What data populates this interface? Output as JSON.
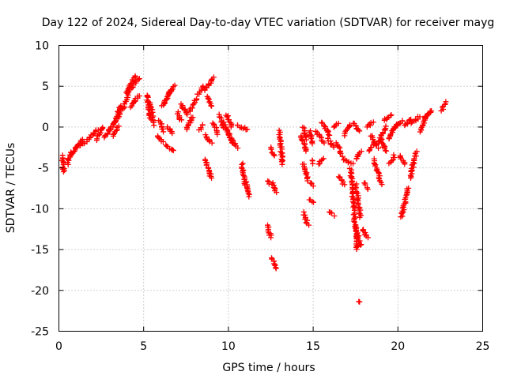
{
  "chart_data": {
    "type": "scatter",
    "title": "Day 122 of 2024, Sidereal Day-to-day VTEC variation (SDTVAR) for receiver mayg",
    "xlabel": "GPS time / hours",
    "ylabel": "SDTVAR / TECUs",
    "xlim": [
      0,
      25
    ],
    "ylim": [
      -25,
      10
    ],
    "x_ticks": [
      0,
      5,
      10,
      15,
      20,
      25
    ],
    "y_ticks": [
      -25,
      -20,
      -15,
      -10,
      -5,
      0,
      5,
      10
    ],
    "x_tick_labels": [
      "0",
      "5",
      "10",
      "15",
      "20",
      "25"
    ],
    "y_tick_labels": [
      "-25",
      "-20",
      "-15",
      "-10",
      "-5",
      "0",
      "5",
      "10"
    ],
    "grid": true,
    "marker": "plus",
    "color": "#ff0000",
    "segments": [
      {
        "x": [
          0.2,
          0.3
        ],
        "y": [
          -3.5,
          -5.5
        ]
      },
      {
        "x": [
          0.5,
          0.7
        ],
        "y": [
          -4.5,
          -3.0
        ]
      },
      {
        "x": [
          0.7,
          1.4
        ],
        "y": [
          -3.5,
          -1.5
        ]
      },
      {
        "x": [
          1.0,
          1.6
        ],
        "y": [
          -2.5,
          -1.8
        ]
      },
      {
        "x": [
          1.7,
          2.3
        ],
        "y": [
          -1.5,
          -0.3
        ]
      },
      {
        "x": [
          2.2,
          2.6
        ],
        "y": [
          -1.5,
          0.0
        ]
      },
      {
        "x": [
          2.7,
          3.0
        ],
        "y": [
          -1.3,
          -0.2
        ]
      },
      {
        "x": [
          3.0,
          3.4
        ],
        "y": [
          -0.5,
          1.0
        ]
      },
      {
        "x": [
          3.2,
          3.5
        ],
        "y": [
          -1.0,
          0.0
        ]
      },
      {
        "x": [
          3.3,
          3.6
        ],
        "y": [
          0.5,
          2.5
        ]
      },
      {
        "x": [
          3.5,
          3.7
        ],
        "y": [
          1.2,
          2.6
        ]
      },
      {
        "x": [
          3.8,
          4.2
        ],
        "y": [
          2.3,
          4.8
        ]
      },
      {
        "x": [
          4.0,
          4.5
        ],
        "y": [
          4.3,
          6.3
        ]
      },
      {
        "x": [
          4.3,
          4.7
        ],
        "y": [
          4.8,
          6.0
        ]
      },
      {
        "x": [
          4.2,
          4.7
        ],
        "y": [
          2.5,
          3.8
        ]
      },
      {
        "x": [
          5.2,
          5.4
        ],
        "y": [
          4.0,
          1.0
        ]
      },
      {
        "x": [
          5.4,
          5.6
        ],
        "y": [
          3.0,
          0.3
        ]
      },
      {
        "x": [
          5.8,
          6.1
        ],
        "y": [
          -1.0,
          -1.8
        ]
      },
      {
        "x": [
          5.9,
          6.2
        ],
        "y": [
          0.8,
          -0.5
        ]
      },
      {
        "x": [
          6.1,
          6.6
        ],
        "y": [
          2.5,
          4.5
        ]
      },
      {
        "x": [
          6.4,
          6.8
        ],
        "y": [
          3.8,
          5.0
        ]
      },
      {
        "x": [
          6.3,
          6.8
        ],
        "y": [
          -2.3,
          -2.8
        ]
      },
      {
        "x": [
          6.4,
          6.7
        ],
        "y": [
          0.0,
          -0.8
        ]
      },
      {
        "x": [
          7.0,
          7.2
        ],
        "y": [
          1.8,
          0.8
        ]
      },
      {
        "x": [
          7.2,
          7.6
        ],
        "y": [
          2.8,
          1.5
        ]
      },
      {
        "x": [
          7.5,
          7.9
        ],
        "y": [
          -0.3,
          1.3
        ]
      },
      {
        "x": [
          7.7,
          8.1
        ],
        "y": [
          2.0,
          3.5
        ]
      },
      {
        "x": [
          8.2,
          8.5
        ],
        "y": [
          4.0,
          5.0
        ]
      },
      {
        "x": [
          8.3,
          8.5
        ],
        "y": [
          -0.3,
          0.3
        ]
      },
      {
        "x": [
          8.6,
          9.1
        ],
        "y": [
          4.5,
          6.0
        ]
      },
      {
        "x": [
          8.6,
          9.0
        ],
        "y": [
          -1.0,
          -2.0
        ]
      },
      {
        "x": [
          8.6,
          9.0
        ],
        "y": [
          -4.0,
          -6.3
        ]
      },
      {
        "x": [
          8.8,
          9.0
        ],
        "y": [
          3.8,
          2.5
        ]
      },
      {
        "x": [
          9.1,
          9.4
        ],
        "y": [
          0.5,
          -0.8
        ]
      },
      {
        "x": [
          9.5,
          9.7
        ],
        "y": [
          1.5,
          0.0
        ]
      },
      {
        "x": [
          9.7,
          10.3
        ],
        "y": [
          0.5,
          -2.0
        ]
      },
      {
        "x": [
          9.9,
          10.2
        ],
        "y": [
          1.5,
          0.0
        ]
      },
      {
        "x": [
          10.0,
          10.5
        ],
        "y": [
          -1.0,
          -2.5
        ]
      },
      {
        "x": [
          10.5,
          11.1
        ],
        "y": [
          0.2,
          -0.3
        ]
      },
      {
        "x": [
          10.8,
          11.0
        ],
        "y": [
          -4.5,
          -7.0
        ]
      },
      {
        "x": [
          11.0,
          11.2
        ],
        "y": [
          -6.5,
          -8.5
        ]
      },
      {
        "x": [
          12.3,
          12.4
        ],
        "y": [
          -6.5,
          -7.0
        ]
      },
      {
        "x": [
          12.3,
          12.5
        ],
        "y": [
          -12.0,
          -13.5
        ]
      },
      {
        "x": [
          12.5,
          12.7
        ],
        "y": [
          -2.5,
          -3.5
        ]
      },
      {
        "x": [
          12.6,
          12.8
        ],
        "y": [
          -6.8,
          -8.0
        ]
      },
      {
        "x": [
          12.6,
          12.8
        ],
        "y": [
          -16.0,
          -17.3
        ]
      },
      {
        "x": [
          13.0,
          13.2
        ],
        "y": [
          -0.5,
          -4.5
        ]
      },
      {
        "x": [
          14.3,
          14.6
        ],
        "y": [
          -1.0,
          -3.0
        ]
      },
      {
        "x": [
          14.4,
          14.6
        ],
        "y": [
          0.0,
          -1.5
        ]
      },
      {
        "x": [
          14.4,
          14.7
        ],
        "y": [
          -4.5,
          -6.5
        ]
      },
      {
        "x": [
          14.4,
          14.7
        ],
        "y": [
          -10.5,
          -12.0
        ]
      },
      {
        "x": [
          14.8,
          15.0
        ],
        "y": [
          -0.5,
          -2.0
        ]
      },
      {
        "x": [
          14.9,
          15.0
        ],
        "y": [
          -4.0,
          -4.5
        ]
      },
      {
        "x": [
          14.8,
          15.0
        ],
        "y": [
          -6.8,
          -7.2
        ]
      },
      {
        "x": [
          14.8,
          15.0
        ],
        "y": [
          -8.8,
          -9.3
        ]
      },
      {
        "x": [
          15.2,
          15.6
        ],
        "y": [
          -0.5,
          -2.0
        ]
      },
      {
        "x": [
          15.3,
          15.6
        ],
        "y": [
          -4.5,
          -3.8
        ]
      },
      {
        "x": [
          15.5,
          16.0
        ],
        "y": [
          0.5,
          -1.0
        ]
      },
      {
        "x": [
          15.9,
          16.2
        ],
        "y": [
          -1.5,
          -2.5
        ]
      },
      {
        "x": [
          16.0,
          16.2
        ],
        "y": [
          -10.3,
          -10.8
        ]
      },
      {
        "x": [
          16.2,
          16.5
        ],
        "y": [
          0.0,
          0.4
        ]
      },
      {
        "x": [
          16.4,
          16.7
        ],
        "y": [
          -2.0,
          -3.5
        ]
      },
      {
        "x": [
          16.5,
          16.8
        ],
        "y": [
          -6.0,
          -7.0
        ]
      },
      {
        "x": [
          16.8,
          17.2
        ],
        "y": [
          -1.0,
          0.3
        ]
      },
      {
        "x": [
          16.8,
          17.3
        ],
        "y": [
          -4.0,
          -4.5
        ]
      },
      {
        "x": [
          17.2,
          17.6
        ],
        "y": [
          -5.0,
          -15.0
        ]
      },
      {
        "x": [
          17.4,
          17.7
        ],
        "y": [
          0.5,
          -0.5
        ]
      },
      {
        "x": [
          17.5,
          17.8
        ],
        "y": [
          -4.0,
          -3.0
        ]
      },
      {
        "x": [
          17.5,
          17.8
        ],
        "y": [
          -7.0,
          -11.0
        ]
      },
      {
        "x": [
          17.5,
          17.8
        ],
        "y": [
          -12.5,
          -14.5
        ]
      },
      {
        "x": [
          17.7,
          17.7
        ],
        "y": [
          -21.3,
          -21.3
        ]
      },
      {
        "x": [
          17.9,
          18.2
        ],
        "y": [
          -12.5,
          -13.5
        ]
      },
      {
        "x": [
          18.0,
          18.2
        ],
        "y": [
          -6.8,
          -7.5
        ]
      },
      {
        "x": [
          18.2,
          18.5
        ],
        "y": [
          0.0,
          0.7
        ]
      },
      {
        "x": [
          18.3,
          18.6
        ],
        "y": [
          -3.0,
          -2.0
        ]
      },
      {
        "x": [
          18.4,
          18.8
        ],
        "y": [
          -1.0,
          -2.5
        ]
      },
      {
        "x": [
          18.6,
          19.0
        ],
        "y": [
          -4.0,
          -7.0
        ]
      },
      {
        "x": [
          18.8,
          19.3
        ],
        "y": [
          -2.0,
          0.0
        ]
      },
      {
        "x": [
          19.0,
          19.3
        ],
        "y": [
          -1.5,
          -3.0
        ]
      },
      {
        "x": [
          19.2,
          19.6
        ],
        "y": [
          0.8,
          1.5
        ]
      },
      {
        "x": [
          19.5,
          19.8
        ],
        "y": [
          -1.5,
          0.0
        ]
      },
      {
        "x": [
          19.5,
          19.8
        ],
        "y": [
          -4.5,
          -3.5
        ]
      },
      {
        "x": [
          19.7,
          20.0
        ],
        "y": [
          -0.3,
          0.5
        ]
      },
      {
        "x": [
          20.0,
          20.3
        ],
        "y": [
          0.3,
          0.8
        ]
      },
      {
        "x": [
          20.1,
          20.4
        ],
        "y": [
          -3.5,
          -4.5
        ]
      },
      {
        "x": [
          20.2,
          20.6
        ],
        "y": [
          -11.0,
          -7.5
        ]
      },
      {
        "x": [
          20.4,
          20.8
        ],
        "y": [
          0.2,
          1.0
        ]
      },
      {
        "x": [
          20.7,
          21.1
        ],
        "y": [
          -6.3,
          -3.0
        ]
      },
      {
        "x": [
          20.8,
          21.3
        ],
        "y": [
          0.5,
          1.3
        ]
      },
      {
        "x": [
          21.3,
          21.7
        ],
        "y": [
          -0.5,
          1.5
        ]
      },
      {
        "x": [
          21.6,
          22.0
        ],
        "y": [
          1.0,
          2.0
        ]
      },
      {
        "x": [
          22.6,
          22.8
        ],
        "y": [
          2.0,
          3.0
        ]
      }
    ]
  }
}
